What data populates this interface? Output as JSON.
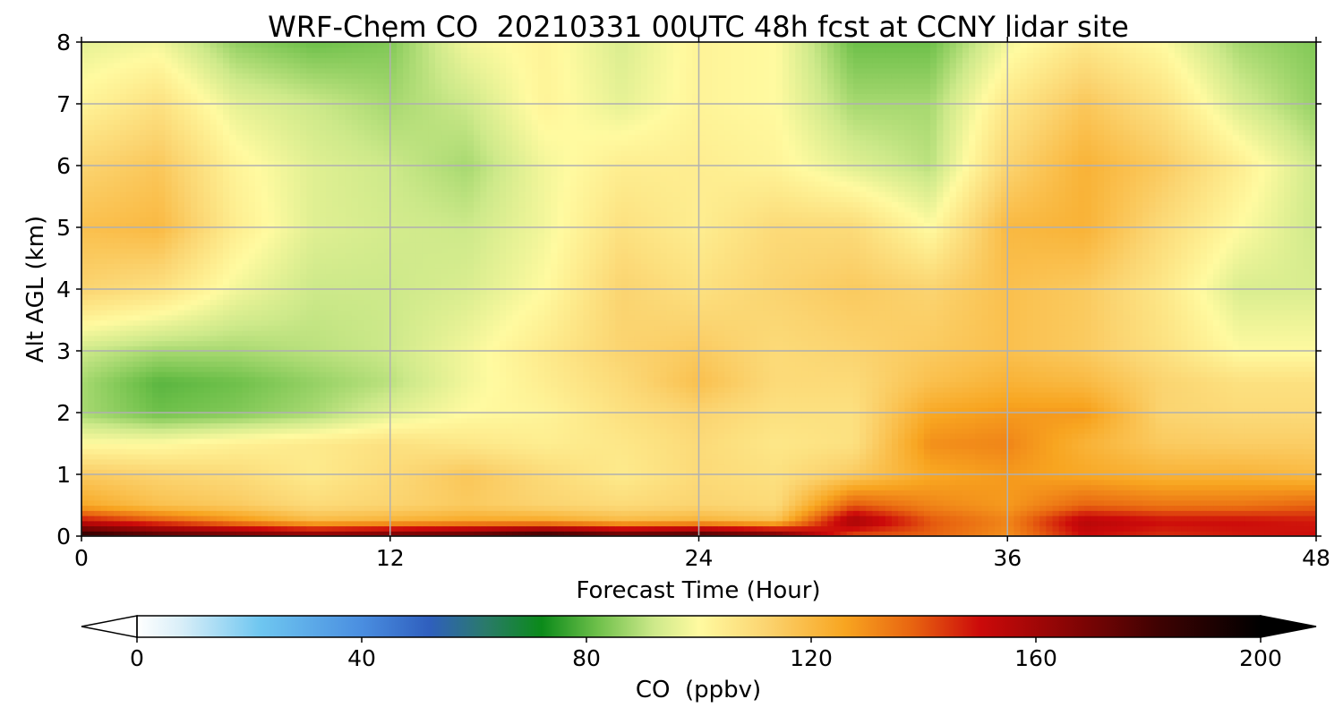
{
  "chart_data": {
    "type": "heatmap",
    "title": "WRF-Chem CO  20210331 00UTC 48h fcst at CCNY lidar site",
    "xlabel": "Forecast Time (Hour)",
    "ylabel": "Alt AGL (km)",
    "xlim": [
      0,
      48
    ],
    "ylim": [
      0,
      8
    ],
    "xticks": [
      "0",
      "12",
      "24",
      "36",
      "48"
    ],
    "yticks": [
      "0",
      "1",
      "2",
      "3",
      "4",
      "5",
      "6",
      "7",
      "8"
    ],
    "grid": true,
    "x_hours": [
      0,
      3,
      6,
      9,
      12,
      15,
      18,
      21,
      24,
      27,
      30,
      33,
      36,
      39,
      42,
      45,
      48
    ],
    "z_km": [
      0,
      0.25,
      0.5,
      1,
      1.5,
      2,
      2.5,
      3,
      4,
      5,
      6,
      7,
      8
    ],
    "values_ppbv": [
      [
        190,
        180,
        175,
        170,
        175,
        180,
        190,
        180,
        185,
        175,
        140,
        138,
        130,
        150,
        145,
        148,
        150
      ],
      [
        150,
        140,
        130,
        120,
        122,
        125,
        125,
        120,
        122,
        118,
        160,
        140,
        132,
        155,
        150,
        150,
        148
      ],
      [
        125,
        118,
        115,
        110,
        112,
        115,
        112,
        110,
        112,
        110,
        140,
        132,
        128,
        138,
        135,
        135,
        138
      ],
      [
        115,
        112,
        110,
        105,
        110,
        116,
        110,
        105,
        110,
        108,
        115,
        125,
        128,
        125,
        122,
        122,
        120
      ],
      [
        100,
        100,
        103,
        105,
        108,
        106,
        104,
        106,
        110,
        106,
        108,
        130,
        132,
        122,
        115,
        114,
        114
      ],
      [
        88,
        82,
        84,
        88,
        95,
        100,
        102,
        108,
        112,
        108,
        108,
        125,
        128,
        128,
        112,
        110,
        110
      ],
      [
        88,
        80,
        82,
        86,
        90,
        98,
        104,
        110,
        118,
        110,
        110,
        118,
        122,
        120,
        112,
        108,
        108
      ],
      [
        92,
        88,
        88,
        90,
        92,
        98,
        105,
        112,
        115,
        110,
        112,
        115,
        118,
        115,
        108,
        100,
        100
      ],
      [
        112,
        108,
        98,
        92,
        92,
        94,
        100,
        112,
        108,
        112,
        115,
        112,
        118,
        115,
        106,
        94,
        94
      ],
      [
        118,
        120,
        104,
        95,
        93,
        92,
        98,
        108,
        104,
        110,
        110,
        100,
        120,
        122,
        110,
        100,
        92
      ],
      [
        112,
        116,
        102,
        95,
        92,
        88,
        98,
        104,
        104,
        102,
        95,
        90,
        112,
        122,
        115,
        104,
        92
      ],
      [
        102,
        108,
        96,
        92,
        88,
        92,
        102,
        96,
        102,
        100,
        88,
        88,
        106,
        116,
        108,
        94,
        86
      ],
      [
        96,
        98,
        86,
        82,
        84,
        98,
        102,
        94,
        102,
        100,
        82,
        82,
        98,
        106,
        100,
        88,
        84
      ]
    ],
    "colorbar": {
      "label": "CO  (ppbv)",
      "min": 0,
      "max": 200,
      "ticks": [
        "0",
        "40",
        "80",
        "120",
        "160",
        "200"
      ],
      "extend": "both",
      "color_stops": [
        {
          "v": 0,
          "c": "#ffffff"
        },
        {
          "v": 8,
          "c": "#d8eef8"
        },
        {
          "v": 22,
          "c": "#6ec6f0"
        },
        {
          "v": 40,
          "c": "#4a8ee0"
        },
        {
          "v": 52,
          "c": "#2f5fbe"
        },
        {
          "v": 62,
          "c": "#2a7a6a"
        },
        {
          "v": 72,
          "c": "#0b8a1a"
        },
        {
          "v": 82,
          "c": "#6ec04a"
        },
        {
          "v": 92,
          "c": "#cde98a"
        },
        {
          "v": 100,
          "c": "#fffaa0"
        },
        {
          "v": 112,
          "c": "#fbd470"
        },
        {
          "v": 126,
          "c": "#f8a520"
        },
        {
          "v": 138,
          "c": "#e86410"
        },
        {
          "v": 150,
          "c": "#cc0a0a"
        },
        {
          "v": 165,
          "c": "#8c0505"
        },
        {
          "v": 182,
          "c": "#3e0202"
        },
        {
          "v": 200,
          "c": "#000000"
        }
      ]
    }
  }
}
